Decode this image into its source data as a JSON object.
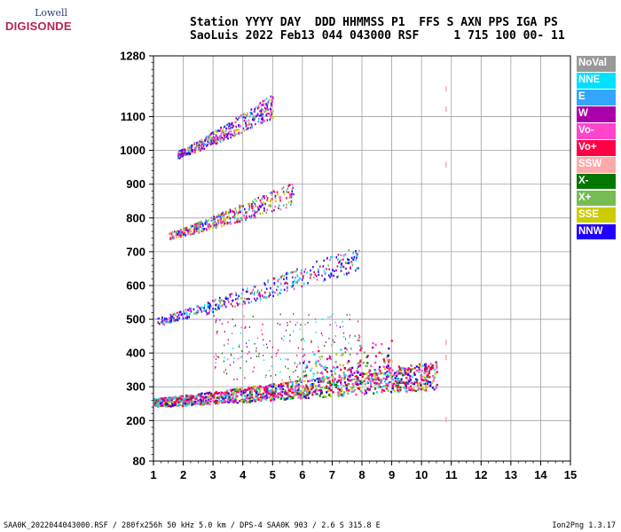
{
  "logo": {
    "top": "Lowell",
    "bottom": "DIGISONDE"
  },
  "header": {
    "line1": "Station YYYY DAY  DDD HHMMSS P1  FFS S AXN PPS IGA PS",
    "line2": "SaoLuis 2022 Feb13 044 043000 RSF     1 715 100 00- 11"
  },
  "footer": {
    "left": "SAA0K_2022044043000.RSF / 280fx256h 50 kHz 5.0 km / DPS-4 SAA0K 903 / 2.6 S 315.8 E",
    "right": "Ion2Png 1.3.17"
  },
  "legend": [
    {
      "label": "NoVal",
      "color": "#999999"
    },
    {
      "label": "NNE",
      "color": "#00e0ff"
    },
    {
      "label": "E",
      "color": "#33a6ff"
    },
    {
      "label": "W",
      "color": "#aa00aa"
    },
    {
      "label": "Vo-",
      "color": "#ff44cc"
    },
    {
      "label": "Vo+",
      "color": "#ff0044"
    },
    {
      "label": "SSW",
      "color": "#ffaaaa"
    },
    {
      "label": "X-",
      "color": "#007700"
    },
    {
      "label": "X+",
      "color": "#77bb55"
    },
    {
      "label": "SSE",
      "color": "#cccc00"
    },
    {
      "label": "NNW",
      "color": "#2200ff"
    }
  ],
  "chart_data": {
    "type": "scatter",
    "xlabel": "",
    "ylabel": "",
    "xlim": [
      1,
      15
    ],
    "ylim": [
      80,
      1280
    ],
    "xticks": [
      1,
      2,
      3,
      4,
      5,
      6,
      7,
      8,
      9,
      10,
      11,
      12,
      13,
      14,
      15
    ],
    "yticks": [
      80,
      200,
      300,
      400,
      500,
      600,
      700,
      800,
      900,
      1000,
      1100,
      1280
    ],
    "grid": true,
    "traces": [
      {
        "name": "trace-1",
        "x_start": 1.0,
        "x_end": 10.5,
        "h_start": 250,
        "h_end": 320,
        "spread": 60
      },
      {
        "name": "trace-2",
        "x_start": 1.1,
        "x_end": 7.9,
        "h_start": 490,
        "h_end": 670,
        "spread": 55
      },
      {
        "name": "trace-3",
        "x_start": 1.5,
        "x_end": 5.7,
        "h_start": 745,
        "h_end": 860,
        "spread": 50
      },
      {
        "name": "trace-4",
        "x_start": 1.8,
        "x_end": 5.0,
        "h_start": 985,
        "h_end": 1120,
        "spread": 50
      }
    ]
  }
}
